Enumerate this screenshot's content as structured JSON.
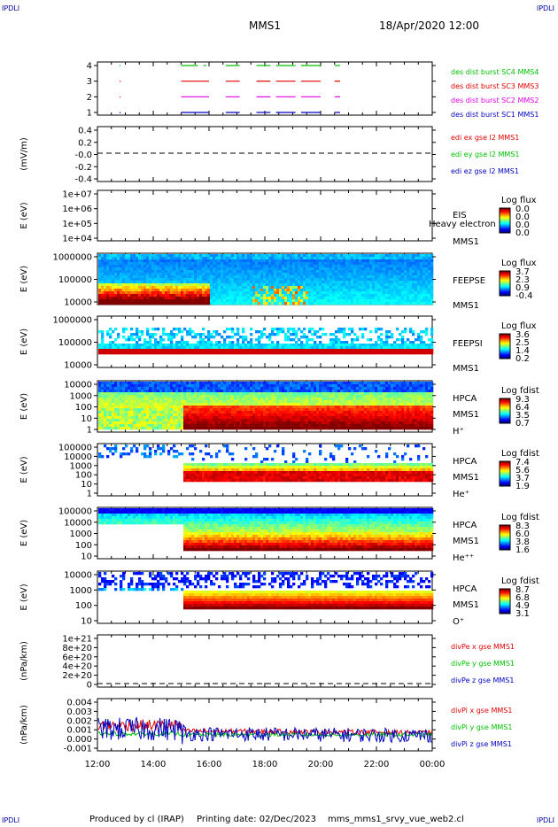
{
  "corners": {
    "tl": "IPDLI",
    "tr": "IPDLI",
    "bl": "IPDLI",
    "br": "IPDLI"
  },
  "header": {
    "spacecraft": "MMS1",
    "datetime": "18/Apr/2020 12:00"
  },
  "footer": {
    "produced_by": "Produced by cl (IRAP)",
    "printing_date": "Printing date: 02/Dec/2023",
    "filename": "mms_mms1_srvy_vue_web2.cl"
  },
  "colors": {
    "red": "#e00000",
    "magenta": "#e000e0",
    "blue": "#0000c0",
    "green": "#00c000",
    "black": "#000000"
  },
  "chart_data": [
    {
      "type": "scatter",
      "name": "burst",
      "ylim": [
        0.5,
        4.5
      ],
      "yticks": [
        "1",
        "2",
        "3",
        "4"
      ],
      "series": [
        {
          "name": "des dist burst SC1 MMS1",
          "color": "#0000c0",
          "y": 1,
          "segments": [
            [
              15.0,
              16.0
            ],
            [
              16.6,
              17.1
            ],
            [
              17.7,
              18.2
            ],
            [
              18.4,
              19.1
            ],
            [
              19.3,
              20.0
            ],
            [
              20.5,
              20.7
            ]
          ]
        },
        {
          "name": "des dist burst SC2 MMS2",
          "color": "#e000e0",
          "y": 2,
          "segments": [
            [
              15.0,
              16.0
            ],
            [
              16.6,
              17.1
            ],
            [
              17.7,
              18.2
            ],
            [
              18.4,
              19.1
            ],
            [
              19.3,
              20.0
            ],
            [
              20.5,
              20.7
            ]
          ]
        },
        {
          "name": "des dist burst SC3 MMS3",
          "color": "#e00000",
          "y": 3,
          "segments": [
            [
              15.0,
              16.0
            ],
            [
              16.6,
              17.1
            ],
            [
              17.7,
              18.2
            ],
            [
              18.4,
              19.1
            ],
            [
              19.3,
              20.0
            ],
            [
              20.5,
              20.7
            ]
          ]
        },
        {
          "name": "des dist burst SC4 MMS4",
          "color": "#00c000",
          "y": 4,
          "segments": [
            [
              15.0,
              15.6
            ],
            [
              15.8,
              15.9
            ],
            [
              16.6,
              17.1
            ],
            [
              17.7,
              18.2
            ],
            [
              18.4,
              19.1
            ],
            [
              19.3,
              20.0
            ],
            [
              20.5,
              20.7
            ]
          ]
        }
      ]
    },
    {
      "type": "line",
      "name": "edi",
      "ylabel": "(mV/m)",
      "ylim": [
        -0.5,
        0.5
      ],
      "yticks": [
        "-0.4",
        "-0.2",
        "-0.0",
        "0.2",
        "0.4"
      ],
      "series": [
        {
          "name": "edi ex gse l2 MMS1",
          "color": "#e00000"
        },
        {
          "name": "edi ey gse l2 MMS1",
          "color": "#00c000"
        },
        {
          "name": "edi ez gse l2 MMS1",
          "color": "#0000c0"
        }
      ]
    },
    {
      "type": "heatmap",
      "name": "eis",
      "ylabel": "E (eV)",
      "yticks": [
        "1e+04",
        "1e+05",
        "1e+06",
        "1e+07"
      ],
      "labels": [
        "EIS",
        "MMS1"
      ],
      "overlay": "Heavy electron to",
      "colorbar": {
        "title": "Log flux",
        "ticks": [
          "0.0",
          "0.0",
          "0.0",
          "0.0"
        ]
      }
    },
    {
      "type": "heatmap",
      "name": "feepse",
      "ylabel": "E (eV)",
      "yticks": [
        "10000",
        "100000",
        "1000000"
      ],
      "labels": [
        "FEEPSE",
        "MMS1"
      ],
      "colorbar": {
        "title": "Log flux",
        "ticks": [
          "3.7",
          "2.3",
          "0.9",
          "-0.4"
        ]
      }
    },
    {
      "type": "heatmap",
      "name": "feepsi",
      "ylabel": "E (eV)",
      "yticks": [
        "10000",
        "100000",
        "1000000"
      ],
      "labels": [
        "FEEPSI",
        "MMS1"
      ],
      "colorbar": {
        "title": "Log flux",
        "ticks": [
          "3.6",
          "2.5",
          "1.4",
          "0.2"
        ]
      }
    },
    {
      "type": "heatmap",
      "name": "hpca-h",
      "ylabel": "E (eV)",
      "yticks": [
        "1",
        "10",
        "100",
        "1000",
        "10000"
      ],
      "labels": [
        "HPCA",
        "MMS1",
        "H⁺"
      ],
      "colorbar": {
        "title": "Log fdist",
        "ticks": [
          "9.3",
          "6.4",
          "3.5",
          "0.7"
        ]
      }
    },
    {
      "type": "heatmap",
      "name": "hpca-he",
      "ylabel": "E (eV)",
      "yticks": [
        "1",
        "10",
        "100",
        "1000",
        "10000",
        "100000"
      ],
      "labels": [
        "HPCA",
        "MMS1",
        "He⁺"
      ],
      "colorbar": {
        "title": "Log fdist",
        "ticks": [
          "7.4",
          "5.6",
          "3.7",
          "1.9"
        ]
      }
    },
    {
      "type": "heatmap",
      "name": "hpca-hepp",
      "ylabel": "E (eV)",
      "yticks": [
        "10",
        "100",
        "1000",
        "10000",
        "100000"
      ],
      "labels": [
        "HPCA",
        "MMS1",
        "He⁺⁺"
      ],
      "colorbar": {
        "title": "Log fdist",
        "ticks": [
          "8.3",
          "6.0",
          "3.8",
          "1.6"
        ]
      }
    },
    {
      "type": "heatmap",
      "name": "hpca-o",
      "ylabel": "E (eV)",
      "yticks": [
        "10",
        "100",
        "1000",
        "10000"
      ],
      "labels": [
        "HPCA",
        "MMS1",
        "O⁺"
      ],
      "colorbar": {
        "title": "Log fdist",
        "ticks": [
          "8.7",
          "6.8",
          "4.9",
          "3.1"
        ]
      }
    },
    {
      "type": "line",
      "name": "divpe",
      "ylabel": "(nPa/km)",
      "ylim": [
        -1e+20,
        1.1e+21
      ],
      "yticks": [
        "0",
        "2e+20",
        "4e+20",
        "6e+20",
        "8e+20",
        "1e+21"
      ],
      "series": [
        {
          "name": "divPe x gse MMS1",
          "color": "#e00000"
        },
        {
          "name": "divPe y gse MMS1",
          "color": "#00c000"
        },
        {
          "name": "divPe z gse MMS1",
          "color": "#0000c0"
        }
      ]
    },
    {
      "type": "line",
      "name": "divpi",
      "ylabel": "(nPa/km)",
      "ylim": [
        -0.0015,
        0.004
      ],
      "yticks": [
        "-0.001",
        "0.000",
        "0.001",
        "0.002",
        "0.003",
        "0.004"
      ],
      "series": [
        {
          "name": "divPi x gse MMS1",
          "color": "#e00000"
        },
        {
          "name": "divPi y gse MMS1",
          "color": "#00c000"
        },
        {
          "name": "divPi z gse MMS1",
          "color": "#0000c0"
        }
      ]
    }
  ],
  "xaxis": {
    "ticks": [
      "12:00",
      "14:00",
      "16:00",
      "18:00",
      "20:00",
      "22:00",
      "00:00"
    ],
    "range_hours": [
      12,
      24
    ]
  }
}
